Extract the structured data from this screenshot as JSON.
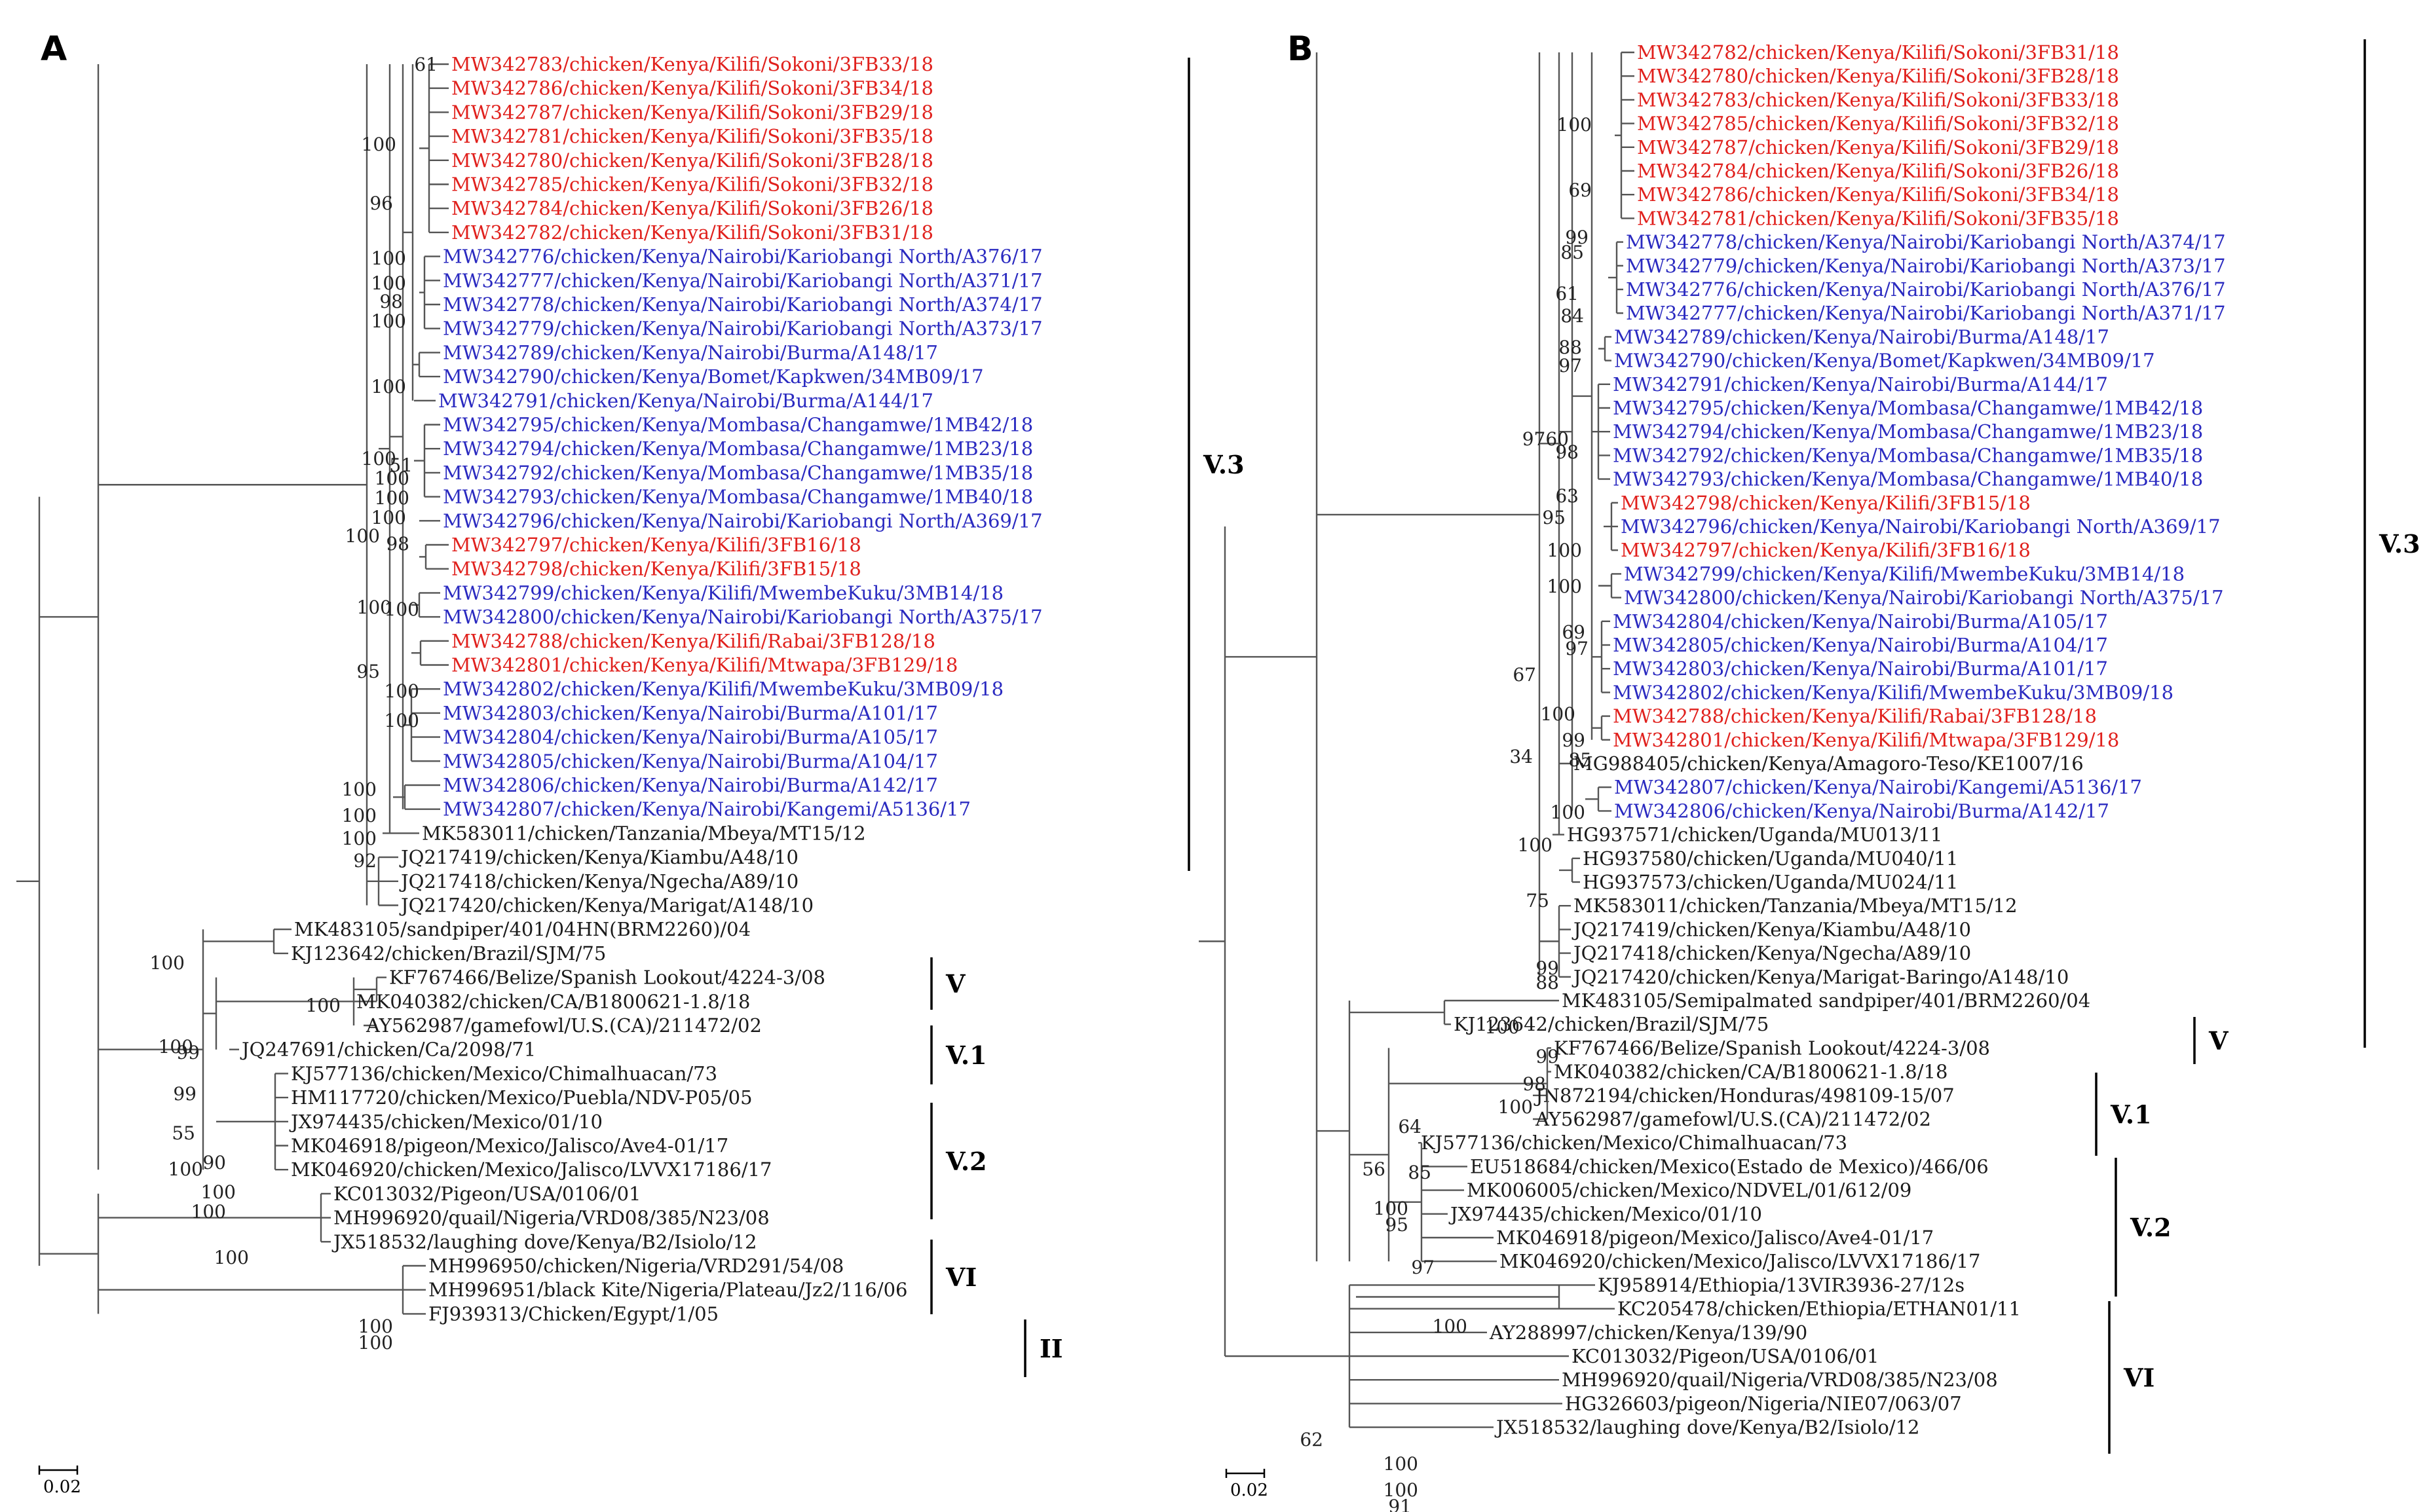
{
  "colors": {
    "red": "#e0201c",
    "blue": "#2a2ac0",
    "black": "#1a1a1a",
    "line": "#555555"
  },
  "panels": [
    {
      "label": "A",
      "scale": "0.02",
      "taxa": [
        {
          "t": "MW342783/chicken/Kenya/Kilifi/Sokoni/3FB33/18",
          "c": "red"
        },
        {
          "t": "MW342786/chicken/Kenya/Kilifi/Sokoni/3FB34/18",
          "c": "red"
        },
        {
          "t": "MW342787/chicken/Kenya/Kilifi/Sokoni/3FB29/18",
          "c": "red"
        },
        {
          "t": "MW342781/chicken/Kenya/Kilifi/Sokoni/3FB35/18",
          "c": "red"
        },
        {
          "t": "MW342780/chicken/Kenya/Kilifi/Sokoni/3FB28/18",
          "c": "red"
        },
        {
          "t": "MW342785/chicken/Kenya/Kilifi/Sokoni/3FB32/18",
          "c": "red"
        },
        {
          "t": "MW342784/chicken/Kenya/Kilifi/Sokoni/3FB26/18",
          "c": "red"
        },
        {
          "t": "MW342782/chicken/Kenya/Kilifi/Sokoni/3FB31/18",
          "c": "red"
        },
        {
          "t": "MW342776/chicken/Kenya/Nairobi/Kariobangi North/A376/17",
          "c": "blue"
        },
        {
          "t": "MW342777/chicken/Kenya/Nairobi/Kariobangi North/A371/17",
          "c": "blue"
        },
        {
          "t": "MW342778/chicken/Kenya/Nairobi/Kariobangi North/A374/17",
          "c": "blue"
        },
        {
          "t": "MW342779/chicken/Kenya/Nairobi/Kariobangi North/A373/17",
          "c": "blue"
        },
        {
          "t": "MW342789/chicken/Kenya/Nairobi/Burma/A148/17",
          "c": "blue"
        },
        {
          "t": "MW342790/chicken/Kenya/Bomet/Kapkwen/34MB09/17",
          "c": "blue"
        },
        {
          "t": "MW342791/chicken/Kenya/Nairobi/Burma/A144/17",
          "c": "blue"
        },
        {
          "t": "MW342795/chicken/Kenya/Mombasa/Changamwe/1MB42/18",
          "c": "blue"
        },
        {
          "t": "MW342794/chicken/Kenya/Mombasa/Changamwe/1MB23/18",
          "c": "blue"
        },
        {
          "t": "MW342792/chicken/Kenya/Mombasa/Changamwe/1MB35/18",
          "c": "blue"
        },
        {
          "t": "MW342793/chicken/Kenya/Mombasa/Changamwe/1MB40/18",
          "c": "blue"
        },
        {
          "t": "MW342796/chicken/Kenya/Nairobi/Kariobangi North/A369/17",
          "c": "blue"
        },
        {
          "t": "MW342797/chicken/Kenya/Kilifi/3FB16/18",
          "c": "red"
        },
        {
          "t": "MW342798/chicken/Kenya/Kilifi/3FB15/18",
          "c": "red"
        },
        {
          "t": "MW342799/chicken/Kenya/Kilifi/MwembeKuku/3MB14/18",
          "c": "blue"
        },
        {
          "t": "MW342800/chicken/Kenya/Nairobi/Kariobangi North/A375/17",
          "c": "blue"
        },
        {
          "t": "MW342788/chicken/Kenya/Kilifi/Rabai/3FB128/18",
          "c": "red"
        },
        {
          "t": "MW342801/chicken/Kenya/Kilifi/Mtwapa/3FB129/18",
          "c": "red"
        },
        {
          "t": "MW342802/chicken/Kenya/Kilifi/MwembeKuku/3MB09/18",
          "c": "blue"
        },
        {
          "t": "MW342803/chicken/Kenya/Nairobi/Burma/A101/17",
          "c": "blue"
        },
        {
          "t": "MW342804/chicken/Kenya/Nairobi/Burma/A105/17",
          "c": "blue"
        },
        {
          "t": "MW342805/chicken/Kenya/Nairobi/Burma/A104/17",
          "c": "blue"
        },
        {
          "t": "MW342806/chicken/Kenya/Nairobi/Burma/A142/17",
          "c": "blue"
        },
        {
          "t": "MW342807/chicken/Kenya/Nairobi/Kangemi/A5136/17",
          "c": "blue"
        },
        {
          "t": "MK583011/chicken/Tanzania/Mbeya/MT15/12",
          "c": "black"
        },
        {
          "t": "JQ217419/chicken/Kenya/Kiambu/A48/10",
          "c": "black"
        },
        {
          "t": "JQ217418/chicken/Kenya/Ngecha/A89/10",
          "c": "black"
        },
        {
          "t": "JQ217420/chicken/Kenya/Marigat/A148/10",
          "c": "black"
        },
        {
          "t": "MK483105/sandpiper/401/04HN(BRM2260)/04",
          "c": "black"
        },
        {
          "t": "KJ123642/chicken/Brazil/SJM/75",
          "c": "black"
        },
        {
          "t": "KF767466/Belize/Spanish Lookout/4224-3/08",
          "c": "black"
        },
        {
          "t": "MK040382/chicken/CA/B1800621-1.8/18",
          "c": "black"
        },
        {
          "t": "AY562987/gamefowl/U.S.(CA)/211472/02",
          "c": "black"
        },
        {
          "t": "JQ247691/chicken/Ca/2098/71",
          "c": "black"
        },
        {
          "t": "KJ577136/chicken/Mexico/Chimalhuacan/73",
          "c": "black"
        },
        {
          "t": "HM117720/chicken/Mexico/Puebla/NDV-P05/05",
          "c": "black"
        },
        {
          "t": "JX974435/chicken/Mexico/01/10",
          "c": "black"
        },
        {
          "t": "MK046918/pigeon/Mexico/Jalisco/Ave4-01/17",
          "c": "black"
        },
        {
          "t": "MK046920/chicken/Mexico/Jalisco/LVVX17186/17",
          "c": "black"
        },
        {
          "t": "KC013032/Pigeon/USA/0106/01",
          "c": "black"
        },
        {
          "t": "MH996920/quail/Nigeria/VRD08/385/N23/08",
          "c": "black"
        },
        {
          "t": "JX518532/laughing dove/Kenya/B2/Isiolo/12",
          "c": "black"
        },
        {
          "t": "MH996950/chicken/Nigeria/VRD291/54/08",
          "c": "black"
        },
        {
          "t": "MH996951/black Kite/Nigeria/Plateau/Jz2/116/06",
          "c": "black"
        },
        {
          "t": "FJ939313/Chicken/Egypt/1/05",
          "c": "black"
        }
      ],
      "bootstraps": [
        "61",
        "100",
        "96",
        "100",
        "100",
        "98",
        "100",
        "100",
        "100",
        "51",
        "100",
        "100",
        "100",
        "98",
        "100",
        "100",
        "100",
        "95",
        "100",
        "100",
        "100",
        "100",
        "100",
        "92",
        "100",
        "100",
        "100",
        "99",
        "99",
        "55",
        "100",
        "90",
        "100",
        "100",
        "100",
        "100",
        "100"
      ],
      "clades": [
        "V.3",
        "V",
        "V.1",
        "V.2",
        "VI",
        "II"
      ]
    },
    {
      "label": "B",
      "scale": "0.02",
      "taxa": [
        {
          "t": "MW342782/chicken/Kenya/Kilifi/Sokoni/3FB31/18",
          "c": "red"
        },
        {
          "t": "MW342780/chicken/Kenya/Kilifi/Sokoni/3FB28/18",
          "c": "red"
        },
        {
          "t": "MW342783/chicken/Kenya/Kilifi/Sokoni/3FB33/18",
          "c": "red"
        },
        {
          "t": "MW342785/chicken/Kenya/Kilifi/Sokoni/3FB32/18",
          "c": "red"
        },
        {
          "t": "MW342787/chicken/Kenya/Kilifi/Sokoni/3FB29/18",
          "c": "red"
        },
        {
          "t": "MW342784/chicken/Kenya/Kilifi/Sokoni/3FB26/18",
          "c": "red"
        },
        {
          "t": "MW342786/chicken/Kenya/Kilifi/Sokoni/3FB34/18",
          "c": "red"
        },
        {
          "t": "MW342781/chicken/Kenya/Kilifi/Sokoni/3FB35/18",
          "c": "red"
        },
        {
          "t": "MW342778/chicken/Kenya/Nairobi/Kariobangi North/A374/17",
          "c": "blue"
        },
        {
          "t": "MW342779/chicken/Kenya/Nairobi/Kariobangi North/A373/17",
          "c": "blue"
        },
        {
          "t": "MW342776/chicken/Kenya/Nairobi/Kariobangi North/A376/17",
          "c": "blue"
        },
        {
          "t": "MW342777/chicken/Kenya/Nairobi/Kariobangi North/A371/17",
          "c": "blue"
        },
        {
          "t": "MW342789/chicken/Kenya/Nairobi/Burma/A148/17",
          "c": "blue"
        },
        {
          "t": "MW342790/chicken/Kenya/Bomet/Kapkwen/34MB09/17",
          "c": "blue"
        },
        {
          "t": "MW342791/chicken/Kenya/Nairobi/Burma/A144/17",
          "c": "blue"
        },
        {
          "t": "MW342795/chicken/Kenya/Mombasa/Changamwe/1MB42/18",
          "c": "blue"
        },
        {
          "t": "MW342794/chicken/Kenya/Mombasa/Changamwe/1MB23/18",
          "c": "blue"
        },
        {
          "t": "MW342792/chicken/Kenya/Mombasa/Changamwe/1MB35/18",
          "c": "blue"
        },
        {
          "t": "MW342793/chicken/Kenya/Mombasa/Changamwe/1MB40/18",
          "c": "blue"
        },
        {
          "t": "MW342798/chicken/Kenya/Kilifi/3FB15/18",
          "c": "red"
        },
        {
          "t": "MW342796/chicken/Kenya/Nairobi/Kariobangi North/A369/17",
          "c": "blue"
        },
        {
          "t": "MW342797/chicken/Kenya/Kilifi/3FB16/18",
          "c": "red"
        },
        {
          "t": "MW342799/chicken/Kenya/Kilifi/MwembeKuku/3MB14/18",
          "c": "blue"
        },
        {
          "t": "MW342800/chicken/Kenya/Nairobi/Kariobangi North/A375/17",
          "c": "blue"
        },
        {
          "t": "MW342804/chicken/Kenya/Nairobi/Burma/A105/17",
          "c": "blue"
        },
        {
          "t": "MW342805/chicken/Kenya/Nairobi/Burma/A104/17",
          "c": "blue"
        },
        {
          "t": "MW342803/chicken/Kenya/Nairobi/Burma/A101/17",
          "c": "blue"
        },
        {
          "t": "MW342802/chicken/Kenya/Kilifi/MwembeKuku/3MB09/18",
          "c": "blue"
        },
        {
          "t": "MW342788/chicken/Kenya/Kilifi/Rabai/3FB128/18",
          "c": "red"
        },
        {
          "t": "MW342801/chicken/Kenya/Kilifi/Mtwapa/3FB129/18",
          "c": "red"
        },
        {
          "t": "MG988405/chicken/Kenya/Amagoro-Teso/KE1007/16",
          "c": "black"
        },
        {
          "t": "MW342807/chicken/Kenya/Nairobi/Kangemi/A5136/17",
          "c": "blue"
        },
        {
          "t": "MW342806/chicken/Kenya/Nairobi/Burma/A142/17",
          "c": "blue"
        },
        {
          "t": "HG937571/chicken/Uganda/MU013/11",
          "c": "black"
        },
        {
          "t": "HG937580/chicken/Uganda/MU040/11",
          "c": "black"
        },
        {
          "t": "HG937573/chicken/Uganda/MU024/11",
          "c": "black"
        },
        {
          "t": "MK583011/chicken/Tanzania/Mbeya/MT15/12",
          "c": "black"
        },
        {
          "t": "JQ217419/chicken/Kenya/Kiambu/A48/10",
          "c": "black"
        },
        {
          "t": "JQ217418/chicken/Kenya/Ngecha/A89/10",
          "c": "black"
        },
        {
          "t": "JQ217420/chicken/Kenya/Marigat-Baringo/A148/10",
          "c": "black"
        },
        {
          "t": "MK483105/Semipalmated sandpiper/401/BRM2260/04",
          "c": "black"
        },
        {
          "t": "KJ123642/chicken/Brazil/SJM/75",
          "c": "black"
        },
        {
          "t": "KF767466/Belize/Spanish Lookout/4224-3/08",
          "c": "black"
        },
        {
          "t": "MK040382/chicken/CA/B1800621-1.8/18",
          "c": "black"
        },
        {
          "t": "JN872194/chicken/Honduras/498109-15/07",
          "c": "black"
        },
        {
          "t": "AY562987/gamefowl/U.S.(CA)/211472/02",
          "c": "black"
        },
        {
          "t": "KJ577136/chicken/Mexico/Chimalhuacan/73",
          "c": "black"
        },
        {
          "t": "EU518684/chicken/Mexico(Estado de Mexico)/466/06",
          "c": "black"
        },
        {
          "t": "MK006005/chicken/Mexico/NDVEL/01/612/09",
          "c": "black"
        },
        {
          "t": "JX974435/chicken/Mexico/01/10",
          "c": "black"
        },
        {
          "t": "MK046918/pigeon/Mexico/Jalisco/Ave4-01/17",
          "c": "black"
        },
        {
          "t": "MK046920/chicken/Mexico/Jalisco/LVVX17186/17",
          "c": "black"
        },
        {
          "t": "KJ958914/Ethiopia/13VIR3936-27/12s",
          "c": "black"
        },
        {
          "t": "KC205478/chicken/Ethiopia/ETHAN01/11",
          "c": "black"
        },
        {
          "t": "AY288997/chicken/Kenya/139/90",
          "c": "black"
        },
        {
          "t": "KC013032/Pigeon/USA/0106/01",
          "c": "black"
        },
        {
          "t": "MH996920/quail/Nigeria/VRD08/385/N23/08",
          "c": "black"
        },
        {
          "t": "HG326603/pigeon/Nigeria/NIE07/063/07",
          "c": "black"
        },
        {
          "t": "JX518532/laughing dove/Kenya/B2/Isiolo/12",
          "c": "black"
        }
      ],
      "bootstraps": [
        "100",
        "69",
        "99",
        "85",
        "61",
        "84",
        "88",
        "97",
        "9760",
        "98",
        "63",
        "100",
        "95",
        "100",
        "69",
        "97",
        "67",
        "100",
        "99",
        "85",
        "34",
        "100",
        "100",
        "75",
        "99",
        "88",
        "100",
        "99",
        "98",
        "100",
        "64",
        "56",
        "85",
        "100",
        "95",
        "97",
        "62",
        "100",
        "100",
        "91",
        "100"
      ],
      "clades": [
        "V.3",
        "V",
        "V.1",
        "V.2",
        "VI"
      ]
    }
  ]
}
